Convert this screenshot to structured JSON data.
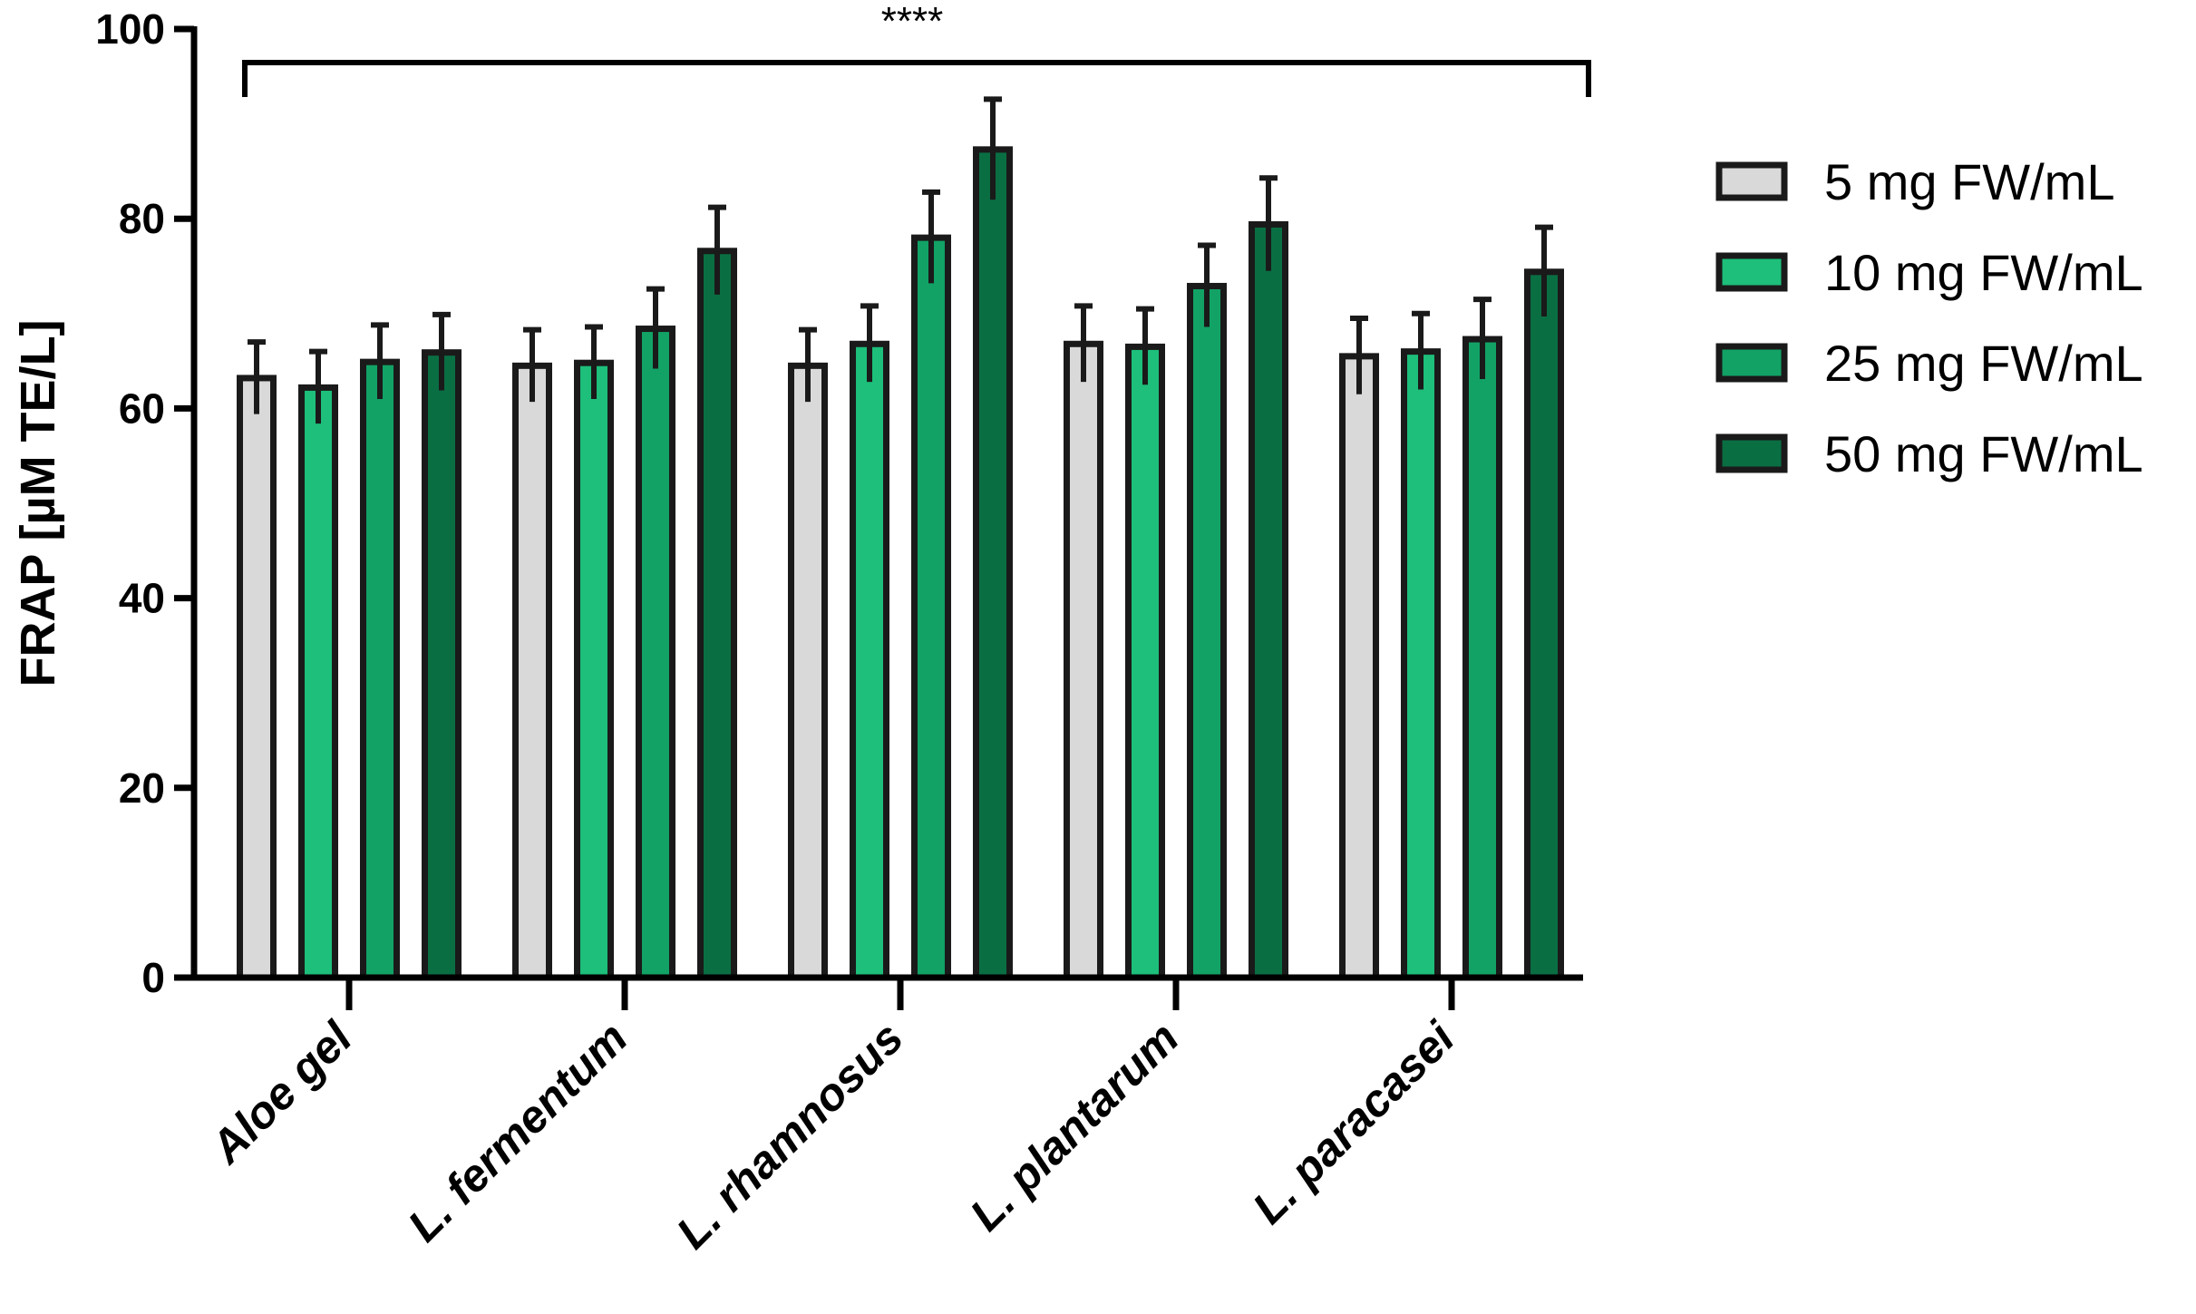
{
  "chart_data": {
    "type": "bar",
    "title": "",
    "ylabel": "FRAP [µM TE/L]",
    "xlabel": "",
    "ylim": [
      0,
      100
    ],
    "yticks": [
      "0",
      "20",
      "40",
      "60",
      "80",
      "100"
    ],
    "categories": [
      "Aloe gel",
      "L. fermentum",
      "L. rhamnosus",
      "L. plantarum",
      "L. paracasei"
    ],
    "series": [
      {
        "name": "5 mg FW/mL",
        "color": "#d9d9d9",
        "values": [
          63.2,
          64.5,
          64.5,
          66.8,
          65.5
        ],
        "errors": [
          3.8,
          3.8,
          3.8,
          4.0,
          4.0
        ]
      },
      {
        "name": "10 mg FW/mL",
        "color": "#1dbf7a",
        "values": [
          62.2,
          64.8,
          66.8,
          66.5,
          66.0
        ],
        "errors": [
          3.8,
          3.8,
          4.0,
          4.0,
          4.0
        ]
      },
      {
        "name": "25 mg FW/mL",
        "color": "#12a266",
        "values": [
          64.9,
          68.4,
          78.0,
          72.9,
          67.3
        ],
        "errors": [
          3.9,
          4.2,
          4.8,
          4.3,
          4.2
        ]
      },
      {
        "name": "50 mg FW/mL",
        "color": "#0a6e43",
        "values": [
          65.9,
          76.6,
          87.3,
          79.4,
          74.4
        ],
        "errors": [
          4.0,
          4.6,
          5.3,
          4.9,
          4.7
        ]
      }
    ],
    "annotation": "****",
    "legend_position": "right",
    "grid": false
  }
}
